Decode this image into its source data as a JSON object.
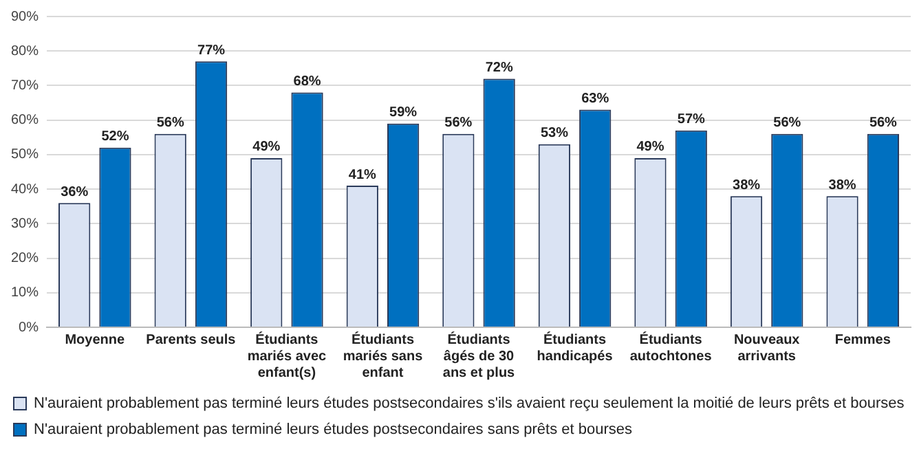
{
  "chart_data": {
    "type": "bar",
    "categories": [
      "Moyenne",
      "Parents seuls",
      "Étudiants mariés avec enfant(s)",
      "Étudiants mariés sans enfant",
      "Étudiants âgés de 30 ans et plus",
      "Étudiants handicapés",
      "Étudiants autochtones",
      "Nouveaux arrivants",
      "Femmes"
    ],
    "series": [
      {
        "name": "N'auraient probablement pas terminé leurs études postsecondaires s'ils avaient reçu seulement la moitié de leurs prêts et bourses",
        "color": "#dae3f3",
        "values": [
          36,
          56,
          49,
          41,
          56,
          53,
          49,
          38,
          38
        ],
        "value_labels": [
          "36%",
          "56%",
          "49%",
          "41%",
          "56%",
          "53%",
          "49%",
          "38%",
          "38%"
        ]
      },
      {
        "name": "N'auraient probablement pas terminé leurs études postsecondaires sans prêts et bourses",
        "color": "#0070c0",
        "values": [
          52,
          77,
          68,
          59,
          72,
          63,
          57,
          56,
          56
        ],
        "value_labels": [
          "52%",
          "77%",
          "68%",
          "59%",
          "72%",
          "63%",
          "57%",
          "56%",
          "56%"
        ]
      }
    ],
    "ylim": [
      0,
      90
    ],
    "yticks": [
      {
        "value": 0,
        "label": "0%"
      },
      {
        "value": 10,
        "label": "10%"
      },
      {
        "value": 20,
        "label": "20%"
      },
      {
        "value": 30,
        "label": "30%"
      },
      {
        "value": 40,
        "label": "40%"
      },
      {
        "value": 50,
        "label": "50%"
      },
      {
        "value": 60,
        "label": "60%"
      },
      {
        "value": 70,
        "label": "70%"
      },
      {
        "value": 80,
        "label": "80%"
      },
      {
        "value": 90,
        "label": "90%"
      }
    ],
    "grid": "y",
    "legend": "bottom left"
  }
}
